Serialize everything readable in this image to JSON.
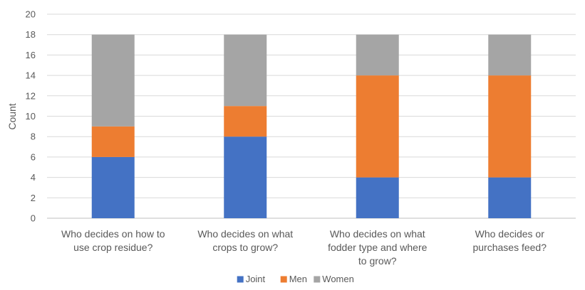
{
  "chart_data": {
    "type": "bar",
    "stacked": true,
    "categories": [
      [
        "Who decides on how to",
        "use crop residue?"
      ],
      [
        "Who decides on what",
        "crops to grow?"
      ],
      [
        "Who decides on what",
        "fodder type and where",
        "to grow?"
      ],
      [
        "Who decides or",
        "purchases feed?"
      ]
    ],
    "series": [
      {
        "name": "Joint",
        "color": "#4472C4",
        "values": [
          6,
          8,
          4,
          4
        ]
      },
      {
        "name": "Men",
        "color": "#ED7D31",
        "values": [
          3,
          3,
          10,
          10
        ]
      },
      {
        "name": "Women",
        "color": "#A5A5A5",
        "values": [
          9,
          7,
          4,
          4
        ]
      }
    ],
    "title": "",
    "xlabel": "",
    "ylabel": "Count",
    "ylim": [
      0,
      20
    ],
    "yticks": [
      0,
      2,
      4,
      6,
      8,
      10,
      12,
      14,
      16,
      18,
      20
    ],
    "grid": true,
    "legend_position": "bottom"
  }
}
